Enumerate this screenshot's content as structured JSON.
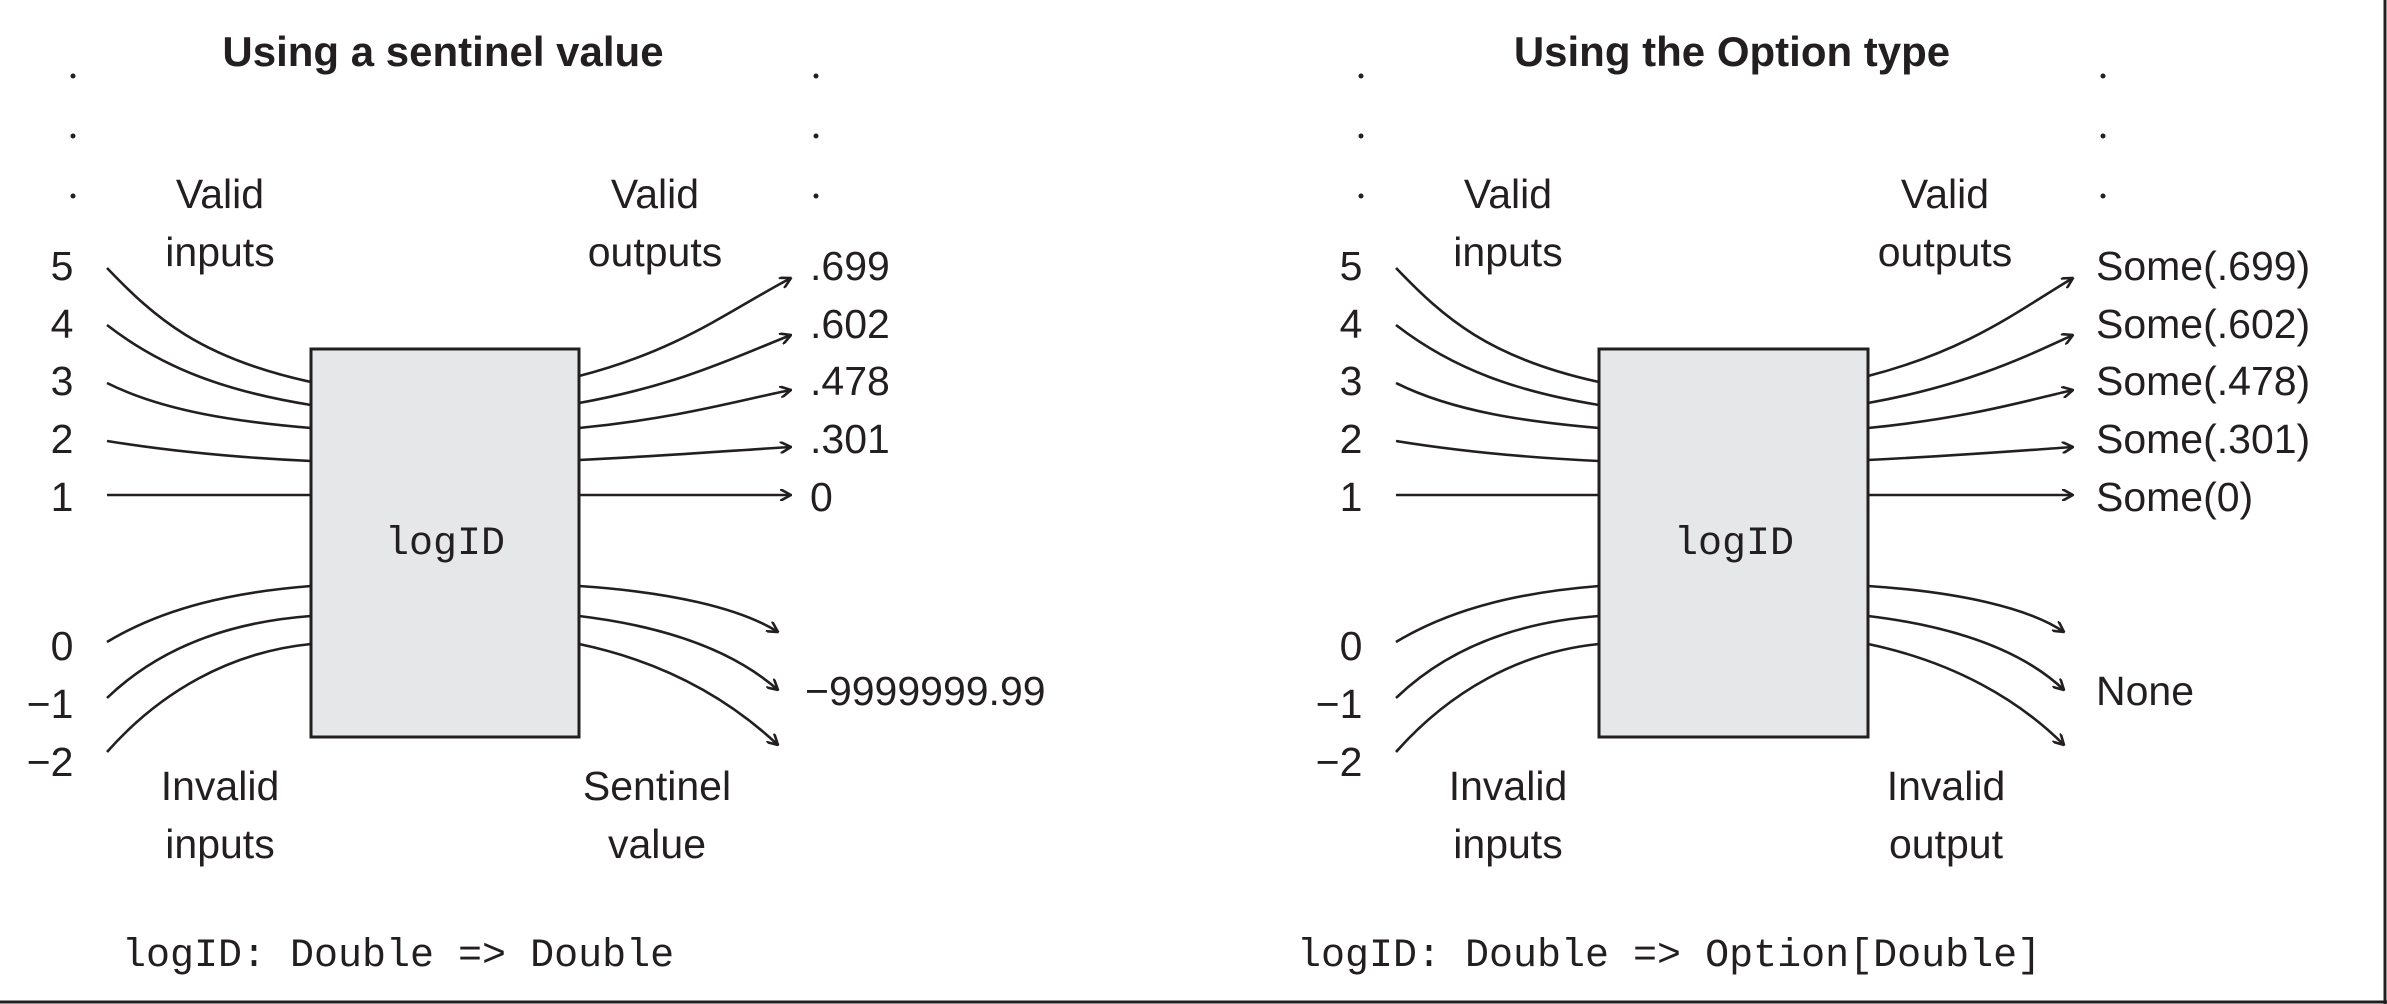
{
  "figure": {
    "panels": [
      {
        "title": "Using a sentinel value",
        "function_name": "logID",
        "valid_inputs_label": [
          "Valid",
          "inputs"
        ],
        "valid_outputs_label": [
          "Valid",
          "outputs"
        ],
        "invalid_inputs_label": [
          "Invalid",
          "inputs"
        ],
        "invalid_output_label": [
          "Sentinel",
          "value"
        ],
        "valid_inputs": [
          "5",
          "4",
          "3",
          "2",
          "1"
        ],
        "valid_outputs": [
          ".699",
          ".602",
          ".478",
          ".301",
          "0"
        ],
        "invalid_inputs": [
          "0",
          "−1",
          "−2"
        ],
        "invalid_output_value": "−9999999.99",
        "signature": "logID: Double => Double"
      },
      {
        "title": "Using the Option type",
        "function_name": "logID",
        "valid_inputs_label": [
          "Valid",
          "inputs"
        ],
        "valid_outputs_label": [
          "Valid",
          "outputs"
        ],
        "invalid_inputs_label": [
          "Invalid",
          "inputs"
        ],
        "invalid_output_label": [
          "Invalid",
          "output"
        ],
        "valid_inputs": [
          "5",
          "4",
          "3",
          "2",
          "1"
        ],
        "valid_outputs": [
          "Some(.699)",
          "Some(.602)",
          "Some(.478)",
          "Some(.301)",
          "Some(0)"
        ],
        "invalid_inputs": [
          "0",
          "−1",
          "−2"
        ],
        "invalid_output_value": "None",
        "signature": "logID: Double => Option[Double]"
      }
    ]
  }
}
